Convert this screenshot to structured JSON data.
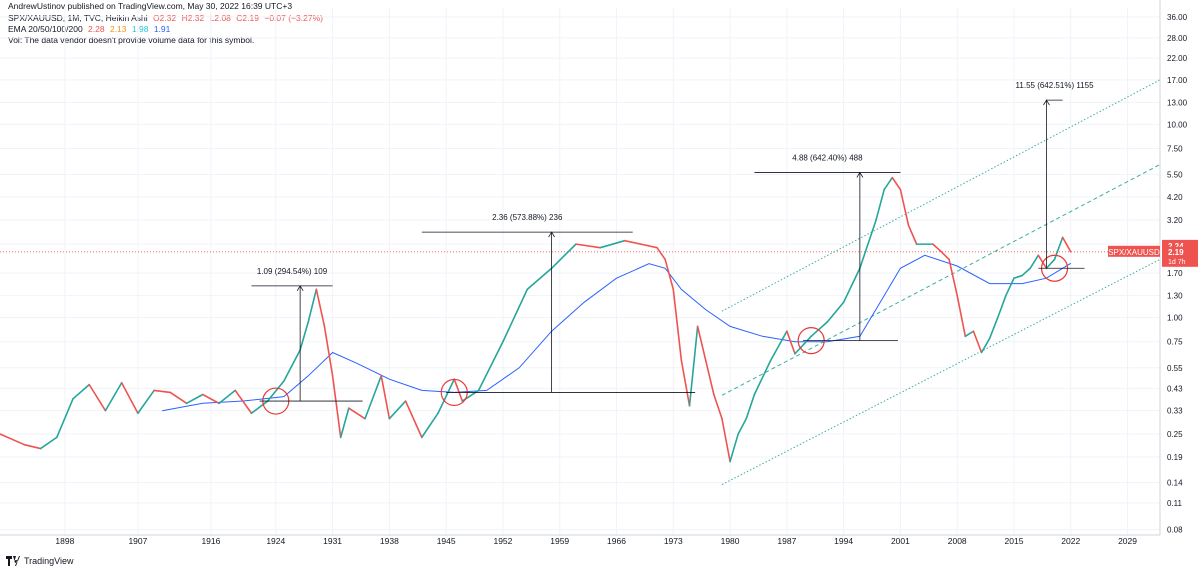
{
  "header": {
    "published": "AndrewUstinov published on TradingView.com, May 30, 2022 16:39 UTC+3",
    "symbol_line": "SPX/XAUUSD, 1M, TVC, Heikin Ashi",
    "ohlc": {
      "o": "O2.32",
      "h": "H2.32",
      "l": "L2.08",
      "c": "C2.19",
      "chg": "−0.07 (−3.27%)"
    },
    "ema_label": "EMA 20/50/100/200",
    "ema_values": [
      "2.28",
      "2.13",
      "1.98",
      "1.91"
    ],
    "vol_note": "Vol: The data vendor doesn't provide volume data for this symbol."
  },
  "footer": {
    "brand": "TradingView"
  },
  "price_tags": {
    "high": "2.24",
    "close": "2.19",
    "countdown": "1d 7h",
    "symbol": "SPX/XAUUSD"
  },
  "colors": {
    "up": "#26a69a",
    "down": "#ef5350",
    "ema20": "#ef5350",
    "ema50": "#f7931a",
    "ema100": "#26c6da",
    "ema200": "#2962ff",
    "channel": "#26a69a",
    "last_price": "#ef5350",
    "circle": "#e53935",
    "measure": "#131722"
  },
  "chart_data": {
    "type": "line",
    "scale": "log",
    "x_axis": {
      "ticks": [
        "1898",
        "1907",
        "1916",
        "1924",
        "1931",
        "1938",
        "1945",
        "1952",
        "1959",
        "1966",
        "1973",
        "1980",
        "1987",
        "1994",
        "2001",
        "2008",
        "2015",
        "2022",
        "2029"
      ],
      "range": [
        1890,
        2033
      ]
    },
    "y_axis": {
      "ticks": [
        "36.00",
        "28.00",
        "22.00",
        "17.00",
        "13.00",
        "10.00",
        "7.50",
        "5.50",
        "4.20",
        "3.20",
        "2.40",
        "1.70",
        "1.30",
        "1.00",
        "0.75",
        "0.55",
        "0.43",
        "0.33",
        "0.25",
        "0.19",
        "0.14",
        "0.11",
        "0.08"
      ],
      "range": [
        0.075,
        40
      ]
    },
    "series": [
      {
        "name": "SPX/XAUUSD",
        "points": [
          [
            1890,
            0.25
          ],
          [
            1893,
            0.22
          ],
          [
            1895,
            0.21
          ],
          [
            1897,
            0.24
          ],
          [
            1899,
            0.38
          ],
          [
            1901,
            0.45
          ],
          [
            1903,
            0.33
          ],
          [
            1905,
            0.46
          ],
          [
            1907,
            0.32
          ],
          [
            1909,
            0.42
          ],
          [
            1911,
            0.41
          ],
          [
            1913,
            0.36
          ],
          [
            1915,
            0.4
          ],
          [
            1917,
            0.36
          ],
          [
            1919,
            0.42
          ],
          [
            1921,
            0.32
          ],
          [
            1923,
            0.37
          ],
          [
            1925,
            0.47
          ],
          [
            1927,
            0.68
          ],
          [
            1928,
            0.95
          ],
          [
            1929,
            1.4
          ],
          [
            1930,
            0.9
          ],
          [
            1931,
            0.5
          ],
          [
            1932,
            0.24
          ],
          [
            1933,
            0.34
          ],
          [
            1935,
            0.3
          ],
          [
            1937,
            0.5
          ],
          [
            1938,
            0.3
          ],
          [
            1940,
            0.37
          ],
          [
            1942,
            0.24
          ],
          [
            1944,
            0.32
          ],
          [
            1946,
            0.48
          ],
          [
            1947,
            0.37
          ],
          [
            1949,
            0.42
          ],
          [
            1952,
            0.75
          ],
          [
            1955,
            1.4
          ],
          [
            1958,
            1.8
          ],
          [
            1961,
            2.4
          ],
          [
            1964,
            2.3
          ],
          [
            1967,
            2.5
          ],
          [
            1969,
            2.4
          ],
          [
            1971,
            2.3
          ],
          [
            1972,
            2.0
          ],
          [
            1973,
            1.4
          ],
          [
            1974,
            0.6
          ],
          [
            1975,
            0.35
          ],
          [
            1976,
            0.9
          ],
          [
            1977,
            0.6
          ],
          [
            1978,
            0.4
          ],
          [
            1979,
            0.3
          ],
          [
            1980,
            0.18
          ],
          [
            1981,
            0.25
          ],
          [
            1982,
            0.3
          ],
          [
            1983,
            0.4
          ],
          [
            1985,
            0.6
          ],
          [
            1987,
            0.85
          ],
          [
            1988,
            0.65
          ],
          [
            1990,
            0.8
          ],
          [
            1992,
            0.95
          ],
          [
            1994,
            1.2
          ],
          [
            1996,
            1.8
          ],
          [
            1998,
            3.2
          ],
          [
            1999,
            4.6
          ],
          [
            2000,
            5.3
          ],
          [
            2001,
            4.6
          ],
          [
            2002,
            3.0
          ],
          [
            2003,
            2.4
          ],
          [
            2004,
            2.4
          ],
          [
            2005,
            2.4
          ],
          [
            2006,
            2.2
          ],
          [
            2007,
            2.0
          ],
          [
            2008,
            1.3
          ],
          [
            2009,
            0.8
          ],
          [
            2010,
            0.85
          ],
          [
            2011,
            0.66
          ],
          [
            2012,
            0.78
          ],
          [
            2013,
            1.0
          ],
          [
            2014,
            1.3
          ],
          [
            2015,
            1.6
          ],
          [
            2016,
            1.65
          ],
          [
            2017,
            1.8
          ],
          [
            2018,
            2.1
          ],
          [
            2019,
            1.8
          ],
          [
            2020,
            2.0
          ],
          [
            2021,
            2.6
          ],
          [
            2022,
            2.19
          ]
        ]
      },
      {
        "name": "EMA 200",
        "points": [
          [
            1910,
            0.33
          ],
          [
            1915,
            0.36
          ],
          [
            1920,
            0.37
          ],
          [
            1925,
            0.39
          ],
          [
            1928,
            0.5
          ],
          [
            1931,
            0.66
          ],
          [
            1934,
            0.58
          ],
          [
            1938,
            0.48
          ],
          [
            1942,
            0.42
          ],
          [
            1946,
            0.41
          ],
          [
            1950,
            0.42
          ],
          [
            1954,
            0.55
          ],
          [
            1958,
            0.85
          ],
          [
            1962,
            1.2
          ],
          [
            1966,
            1.6
          ],
          [
            1970,
            1.9
          ],
          [
            1972,
            1.8
          ],
          [
            1974,
            1.4
          ],
          [
            1977,
            1.1
          ],
          [
            1980,
            0.9
          ],
          [
            1984,
            0.8
          ],
          [
            1988,
            0.75
          ],
          [
            1992,
            0.75
          ],
          [
            1996,
            0.8
          ],
          [
            1999,
            1.3
          ],
          [
            2001,
            1.8
          ],
          [
            2004,
            2.1
          ],
          [
            2008,
            1.85
          ],
          [
            2012,
            1.5
          ],
          [
            2016,
            1.5
          ],
          [
            2019,
            1.6
          ],
          [
            2022,
            1.91
          ]
        ]
      }
    ],
    "annotations": [
      {
        "label": "1.09 (294.54%) 109",
        "from": 0.37,
        "to": 1.46
      },
      {
        "label": "2.36 (573.88%) 236",
        "from": 0.41,
        "to": 2.77
      },
      {
        "label": "4.88 (642.40%) 488",
        "from": 0.76,
        "to": 5.64
      },
      {
        "label": "11.55 (642.51%) 1155",
        "from": 1.8,
        "to": 13.35
      }
    ],
    "last_price": 2.19
  }
}
